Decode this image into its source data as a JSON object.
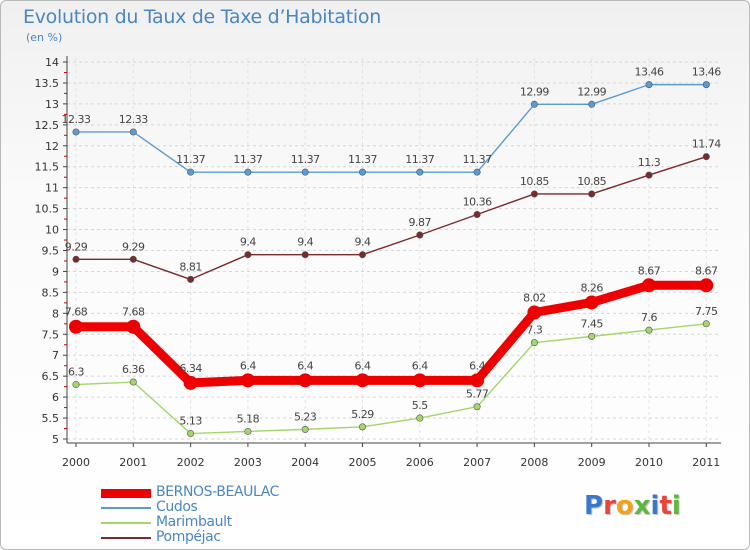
{
  "title": "Evolution du Taux de Taxe d’Habitation",
  "subtitle": "(en %)",
  "logo": {
    "text": "Proxiti",
    "letter_colors": [
      "#3a78c8",
      "#e8453c",
      "#f3a11b",
      "#5cb83b",
      "#3a78c8",
      "#e8453c",
      "#5cb83b"
    ]
  },
  "chart_data": {
    "type": "line",
    "title": "Evolution du Taux de Taxe d’Habitation",
    "subtitle": "(en %)",
    "xlabel": "",
    "ylabel": "",
    "x": [
      "2000",
      "2001",
      "2002",
      "2003",
      "2004",
      "2005",
      "2006",
      "2007",
      "2008",
      "2009",
      "2010",
      "2011"
    ],
    "ylim": [
      5,
      14
    ],
    "yticks": [
      "5",
      "5.5",
      "6",
      "6.5",
      "7",
      "7.5",
      "8",
      "8.5",
      "9",
      "9.5",
      "10",
      "10.5",
      "11",
      "11.5",
      "12",
      "12.5",
      "13",
      "13.5",
      "14"
    ],
    "grid": true,
    "legend_position": "bottom-left",
    "series": [
      {
        "name": "BERNOS-BEAULAC",
        "color": "#ee0000",
        "values": [
          7.68,
          7.68,
          6.34,
          6.4,
          6.4,
          6.4,
          6.4,
          6.4,
          8.02,
          8.26,
          8.67,
          8.67
        ],
        "labels": [
          "7.68",
          "7.68",
          "6.34",
          "6.4",
          "6.4",
          "6.4",
          "6.4",
          "6.4",
          "8.02",
          "8.26",
          "8.67",
          "8.67"
        ]
      },
      {
        "name": "Cudos",
        "color": "#5b9bd5",
        "values": [
          12.33,
          12.33,
          11.37,
          11.37,
          11.37,
          11.37,
          11.37,
          11.37,
          12.99,
          12.99,
          13.46,
          13.46
        ],
        "labels": [
          "12.33",
          "12.33",
          "11.37",
          "11.37",
          "11.37",
          "11.37",
          "11.37",
          "11.37",
          "12.99",
          "12.99",
          "13.46",
          "13.46"
        ]
      },
      {
        "name": "Marimbault",
        "color": "#a3d66b",
        "values": [
          6.3,
          6.36,
          5.13,
          5.18,
          5.23,
          5.29,
          5.5,
          5.77,
          7.3,
          7.45,
          7.6,
          7.75
        ],
        "labels": [
          "6.3",
          "6.36",
          "5.13",
          "5.18",
          "5.23",
          "5.29",
          "5.5",
          "5.77",
          "7.3",
          "7.45",
          "7.6",
          "7.75"
        ]
      },
      {
        "name": "Pompéjac",
        "color": "#7a2a2a",
        "values": [
          9.29,
          9.29,
          8.81,
          9.4,
          9.4,
          9.4,
          9.87,
          10.36,
          10.85,
          10.85,
          11.3,
          11.74
        ],
        "labels": [
          "9.29",
          "9.29",
          "8.81",
          "9.4",
          "9.4",
          "9.4",
          "9.87",
          "10.36",
          "10.85",
          "10.85",
          "11.3",
          "11.74"
        ]
      }
    ]
  }
}
